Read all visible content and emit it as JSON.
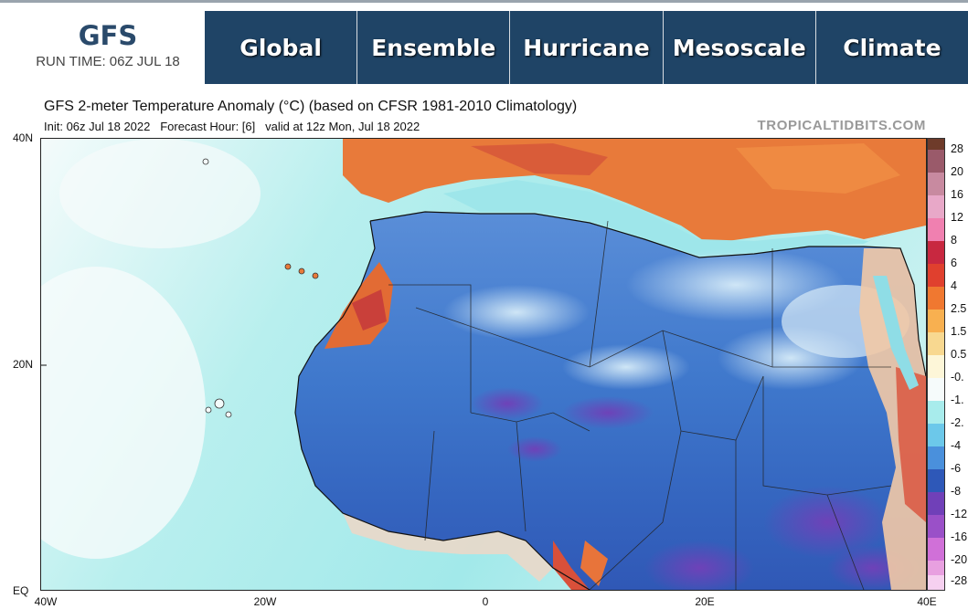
{
  "header": {
    "model": "GFS",
    "run_time": "RUN TIME: 06Z JUL 18"
  },
  "nav": {
    "tabs": [
      {
        "label": "Global"
      },
      {
        "label": "Ensemble"
      },
      {
        "label": "Hurricane"
      },
      {
        "label": "Mesoscale"
      },
      {
        "label": "Climate"
      }
    ]
  },
  "map": {
    "title": "GFS 2-meter Temperature Anomaly (°C) (based on CFSR 1981-2010 Climatology)",
    "init_label": "Init: 06z Jul 18 2022",
    "forecast_label": "Forecast Hour: [6]",
    "valid_label": "valid at 12z Mon, Jul 18 2022",
    "credit": "TROPICALTIDBITS.COM",
    "lat_labels": [
      "40N",
      "20N",
      "EQ"
    ],
    "lon_labels": [
      "40W",
      "20W",
      "0",
      "20E",
      "40E"
    ],
    "colorbar_labels": [
      "28",
      "20",
      "16",
      "12",
      "8",
      "6",
      "4",
      "2.5",
      "1.5",
      "0.5",
      "-0.",
      "-1.",
      "-2.",
      "-4",
      "-6",
      "-8",
      "-12",
      "-16",
      "-20",
      "-28"
    ],
    "colors": {
      "ocean_warm": "#a7ecec",
      "ocean_cool": "#f7fbfb",
      "land_cold": "#3a73c8",
      "land_very_cold": "#7d4bc0",
      "land_warm": "#e86a2e",
      "land_hot": "#c8383a"
    }
  }
}
